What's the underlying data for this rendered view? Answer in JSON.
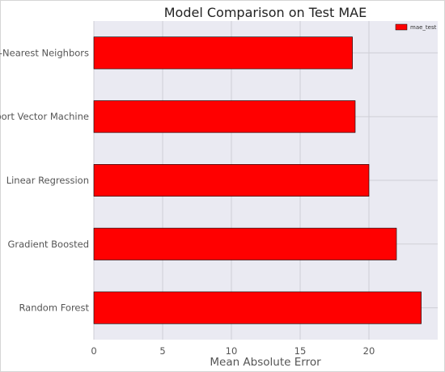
{
  "chart_data": {
    "type": "bar",
    "orientation": "horizontal",
    "title": "Model Comparison on Test MAE",
    "xlabel": "Mean Absolute Error",
    "ylabel": "",
    "categories": [
      "K-Nearest Neighbors",
      "Support Vector Machine",
      "Linear Regression",
      "Gradient Boosted",
      "Random Forest"
    ],
    "series": [
      {
        "name": "mae_test",
        "values": [
          18.8,
          19.0,
          20.0,
          22.0,
          23.8
        ]
      }
    ],
    "xlim": [
      0,
      25
    ],
    "xticks": [
      0,
      5,
      10,
      15,
      20
    ],
    "xtick_labels": [
      "0",
      "5",
      "10",
      "15",
      "20"
    ],
    "grid": true,
    "legend_position": "top-right",
    "bar_color": "#ff0000",
    "bar_edge_color": "#000000",
    "plot_background": "#eaeaf2"
  }
}
